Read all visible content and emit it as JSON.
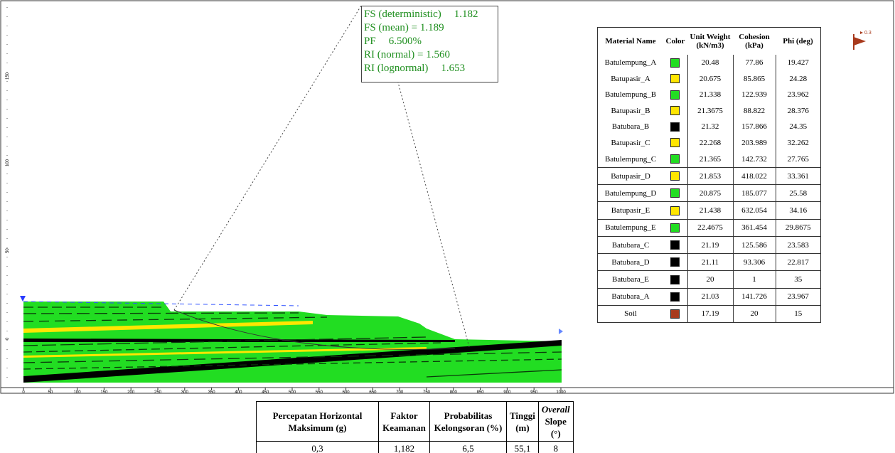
{
  "fs_box": {
    "rows": [
      {
        "label": "FS (deterministic)",
        "value": "1.182"
      },
      {
        "label": "FS (mean) = 1.189",
        "value": ""
      },
      {
        "label": "PF",
        "value": "6.500%"
      },
      {
        "label": "RI (normal) = 1.560",
        "value": ""
      },
      {
        "label": "RI (lognormal)",
        "value": "1.653"
      }
    ]
  },
  "legend": {
    "headers": {
      "name": "Material Name",
      "color": "Color",
      "unit_weight": "Unit Weight (kN/m3)",
      "cohesion": "Cohesion (kPa)",
      "phi": "Phi (deg)"
    },
    "rows": [
      {
        "name": "Batulempung_A",
        "color": "#22dd22",
        "unit_weight": "20.48",
        "cohesion": "77.86",
        "phi": "19.427"
      },
      {
        "name": "Batupasir_A",
        "color": "#ffe600",
        "unit_weight": "20.675",
        "cohesion": "85.865",
        "phi": "24.28"
      },
      {
        "name": "Batulempung_B",
        "color": "#22dd22",
        "unit_weight": "21.338",
        "cohesion": "122.939",
        "phi": "23.962"
      },
      {
        "name": "Batupasir_B",
        "color": "#ffe600",
        "unit_weight": "21.3675",
        "cohesion": "88.822",
        "phi": "28.376"
      },
      {
        "name": "Batubara_B",
        "color": "#000000",
        "unit_weight": "21.32",
        "cohesion": "157.866",
        "phi": "24.35"
      },
      {
        "name": "Batupasir_C",
        "color": "#ffe600",
        "unit_weight": "22.268",
        "cohesion": "203.989",
        "phi": "32.262"
      },
      {
        "name": "Batulempung_C",
        "color": "#22dd22",
        "unit_weight": "21.365",
        "cohesion": "142.732",
        "phi": "27.765"
      },
      {
        "name": "Batupasir_D",
        "color": "#ffe600",
        "unit_weight": "21.853",
        "cohesion": "418.022",
        "phi": "33.361"
      },
      {
        "name": "Batulempung_D",
        "color": "#22dd22",
        "unit_weight": "20.875",
        "cohesion": "185.077",
        "phi": "25.58"
      },
      {
        "name": "Batupasir_E",
        "color": "#ffe600",
        "unit_weight": "21.438",
        "cohesion": "632.054",
        "phi": "34.16"
      },
      {
        "name": "Batulempung_E",
        "color": "#22dd22",
        "unit_weight": "22.4675",
        "cohesion": "361.454",
        "phi": "29.8675"
      },
      {
        "name": "Batubara_C",
        "color": "#000000",
        "unit_weight": "21.19",
        "cohesion": "125.586",
        "phi": "23.583"
      },
      {
        "name": "Batubara_D",
        "color": "#000000",
        "unit_weight": "21.11",
        "cohesion": "93.306",
        "phi": "22.817"
      },
      {
        "name": "Batubara_E",
        "color": "#000000",
        "unit_weight": "20",
        "cohesion": "1",
        "phi": "35"
      },
      {
        "name": "Batubara_A",
        "color": "#000000",
        "unit_weight": "21.03",
        "cohesion": "141.726",
        "phi": "23.967"
      },
      {
        "name": "Soil",
        "color": "#a83a1c",
        "unit_weight": "17.19",
        "cohesion": "20",
        "phi": "15"
      }
    ]
  },
  "x_axis": {
    "ticks": [
      "0",
      "50",
      "100",
      "150",
      "200",
      "250",
      "300",
      "350",
      "400",
      "450",
      "500",
      "550",
      "600",
      "650",
      "700",
      "750",
      "800",
      "850",
      "900",
      "950",
      "1000"
    ]
  },
  "y_axis": {
    "ticks": [
      "0",
      "50",
      "100",
      "150"
    ]
  },
  "seismic_label": "0.3",
  "summary": {
    "headers": [
      {
        "text": "Percepatan Horizontal Maksimum (g)"
      },
      {
        "text": "Faktor Keamanan"
      },
      {
        "text": "Probabilitas Kelongsoran (%)"
      },
      {
        "text": "Tinggi (m)"
      },
      {
        "text_italic": "Overall",
        "text": "Slope (°)"
      }
    ],
    "values": [
      "0,3",
      "1,182",
      "6,5",
      "55,1",
      "8"
    ]
  },
  "colors": {
    "green": "#22dd22",
    "yellow": "#ffe600",
    "coal": "#000000",
    "fs_text": "#1f8f1f"
  }
}
